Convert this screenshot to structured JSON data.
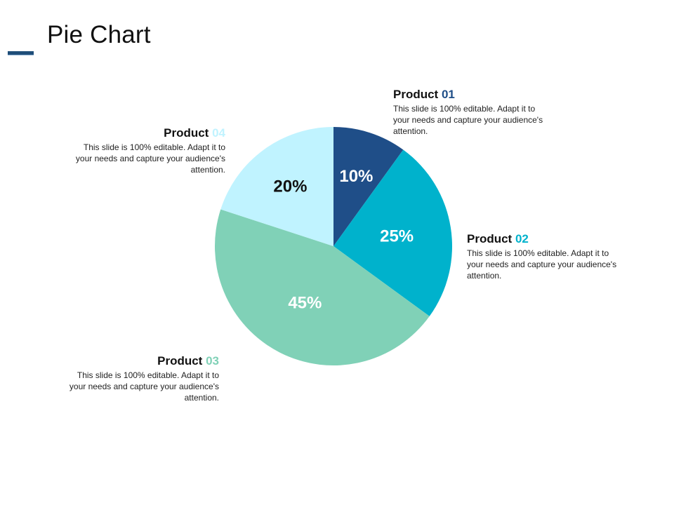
{
  "title": "Pie Chart",
  "chart_data": {
    "type": "pie",
    "slices": [
      {
        "label": "Product 01",
        "value": 10,
        "display": "10%",
        "color": "#1f4e88",
        "text_color": "#ffffff"
      },
      {
        "label": "Product 02",
        "value": 25,
        "display": "25%",
        "color": "#00b2cc",
        "text_color": "#ffffff"
      },
      {
        "label": "Product 03",
        "value": 45,
        "display": "45%",
        "color": "#80d1b7",
        "text_color": "#ffffff"
      },
      {
        "label": "Product 04",
        "value": 20,
        "display": "20%",
        "color": "#c0f3ff",
        "text_color": "#111111"
      }
    ]
  },
  "callouts": [
    {
      "word": "Product",
      "number": "01",
      "number_color": "#1f4e88",
      "description": "This slide is 100% editable. Adapt it to your needs and capture your audience's attention."
    },
    {
      "word": "Product",
      "number": "02",
      "number_color": "#00b2cc",
      "description": "This slide is 100% editable. Adapt it to your needs and capture your audience's attention."
    },
    {
      "word": "Product",
      "number": "03",
      "number_color": "#80d1b7",
      "description": "This slide is 100% editable. Adapt it to your needs and capture your audience's attention."
    },
    {
      "word": "Product",
      "number": "04",
      "number_color": "#c0f3ff",
      "description": "This slide is 100% editable. Adapt it to your needs and capture your audience's attention."
    }
  ]
}
